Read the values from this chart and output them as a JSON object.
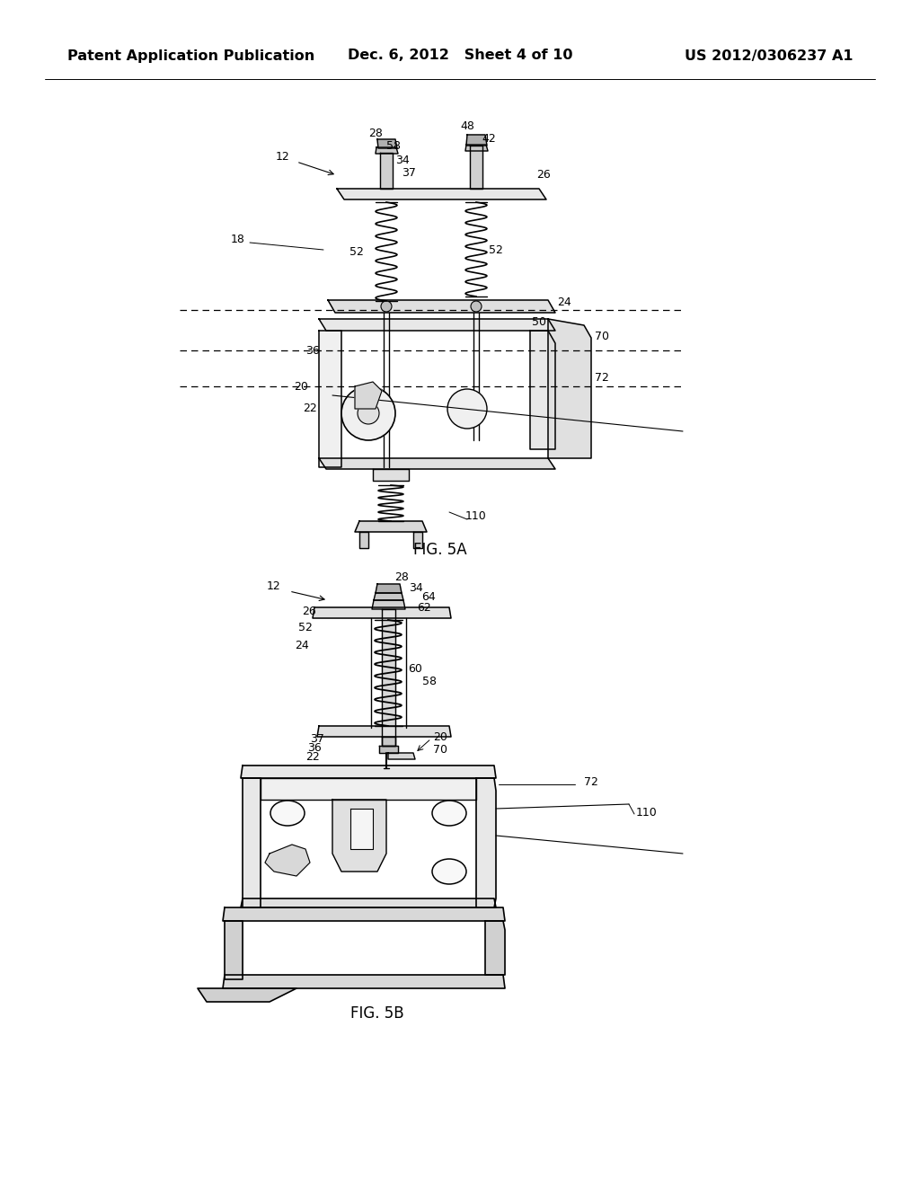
{
  "background_color": "#ffffff",
  "header": {
    "left_text": "Patent Application Publication",
    "center_text": "Dec. 6, 2012   Sheet 4 of 10",
    "right_text": "US 2012/0306237 A1",
    "font_size": 11.5,
    "font_weight": "bold"
  },
  "fig5a_label": "FIG. 5A",
  "fig5b_label": "FIG. 5B",
  "font_size_ref": 9,
  "font_size_fig": 12
}
